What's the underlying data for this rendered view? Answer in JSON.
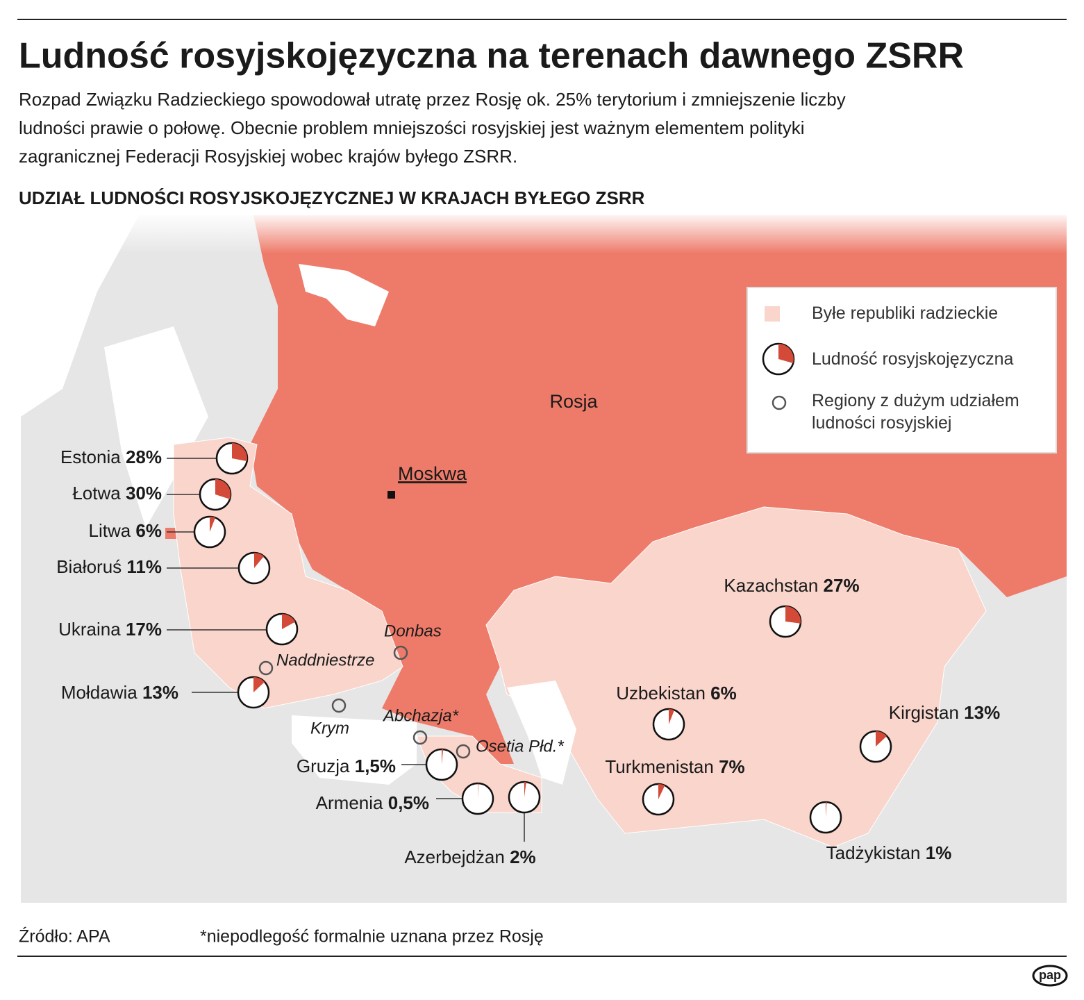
{
  "header": {
    "title": "Ludność rosyjskojęzyczna na terenach dawnego ZSRR",
    "subtitle_lines": [
      "Rozpad Związku Radzieckiego spowodował utratę przez Rosję ok. 25% terytorium i zmniejszenie liczby",
      "ludności prawie o połowę. Obecnie problem mniejszości rosyjskiej jest ważnym elementem polityki",
      "zagranicznej Federacji Rosyjskiej wobec krajów byłego ZSRR."
    ]
  },
  "map": {
    "title": "UDZIAŁ LUDNOŚCI ROSYJSKOJĘZYCZNEJ W KRAJACH BYŁEGO ZSRR",
    "russia_label": "Rosja",
    "capital": "Moskwa",
    "legend": [
      "Byłe republiki radzieckie",
      "Ludność rosyjskojęzyczna",
      "Regiony z dużym udziałem ludności rosyjskiej"
    ],
    "countries": [
      {
        "name": "Estonia",
        "value": 28,
        "label": "28%"
      },
      {
        "name": "Łotwa",
        "value": 30,
        "label": "30%"
      },
      {
        "name": "Litwa",
        "value": 6,
        "label": "6%"
      },
      {
        "name": "Białoruś",
        "value": 11,
        "label": "11%"
      },
      {
        "name": "Ukraina",
        "value": 17,
        "label": "17%"
      },
      {
        "name": "Mołdawia",
        "value": 13,
        "label": "13%"
      },
      {
        "name": "Gruzja",
        "value": 1.5,
        "label": "1,5%"
      },
      {
        "name": "Armenia",
        "value": 0.5,
        "label": "0,5%"
      },
      {
        "name": "Azerbejdżan",
        "value": 2,
        "label": "2%"
      },
      {
        "name": "Kazachstan",
        "value": 27,
        "label": "27%"
      },
      {
        "name": "Uzbekistan",
        "value": 6,
        "label": "6%"
      },
      {
        "name": "Turkmenistan",
        "value": 7,
        "label": "7%"
      },
      {
        "name": "Kirgistan",
        "value": 13,
        "label": "13%"
      },
      {
        "name": "Tadżykistan",
        "value": 1,
        "label": "1%"
      }
    ],
    "regions": [
      "Donbas",
      "Naddniestrze",
      "Krym",
      "Abchazja*",
      "Osetia Płd.*"
    ]
  },
  "footer": {
    "source": "Źródło: APA",
    "note": "*niepodlegość formalnie uznana przez Rosję",
    "logo": "pap"
  }
}
